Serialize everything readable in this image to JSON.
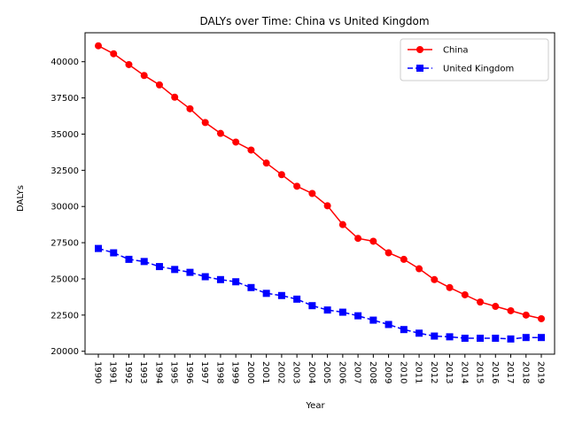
{
  "chart_data": {
    "type": "line",
    "title": "DALYs over Time: China vs United Kingdom",
    "xlabel": "Year",
    "ylabel": "DALYs",
    "x": [
      "1990",
      "1991",
      "1992",
      "1993",
      "1994",
      "1995",
      "1996",
      "1997",
      "1998",
      "1999",
      "2000",
      "2001",
      "2002",
      "2003",
      "2004",
      "2005",
      "2006",
      "2007",
      "2008",
      "2009",
      "2010",
      "2011",
      "2012",
      "2013",
      "2014",
      "2015",
      "2016",
      "2017",
      "2018",
      "2019"
    ],
    "ylim": [
      19800,
      42000
    ],
    "yticks": [
      20000,
      22500,
      25000,
      27500,
      30000,
      32500,
      35000,
      37500,
      40000
    ],
    "legend": "top-right",
    "grid": false,
    "series": [
      {
        "name": "China",
        "color": "#ff0000",
        "marker": "circle",
        "linestyle": "solid",
        "values": [
          41100,
          40550,
          39800,
          39050,
          38400,
          37550,
          36750,
          35800,
          35050,
          34450,
          33900,
          33000,
          32200,
          31400,
          30900,
          30050,
          28750,
          27800,
          27600,
          26800,
          26350,
          25700,
          24950,
          24400,
          23900,
          23400,
          23100,
          22800,
          22500,
          22250
        ]
      },
      {
        "name": "United Kingdom",
        "color": "#0000ff",
        "marker": "square",
        "linestyle": "dashed",
        "values": [
          27100,
          26800,
          26350,
          26200,
          25850,
          25650,
          25450,
          25150,
          24950,
          24800,
          24400,
          24000,
          23850,
          23600,
          23150,
          22850,
          22700,
          22450,
          22150,
          21850,
          21500,
          21250,
          21050,
          21000,
          20900,
          20900,
          20900,
          20850,
          20950,
          20950
        ]
      }
    ]
  }
}
